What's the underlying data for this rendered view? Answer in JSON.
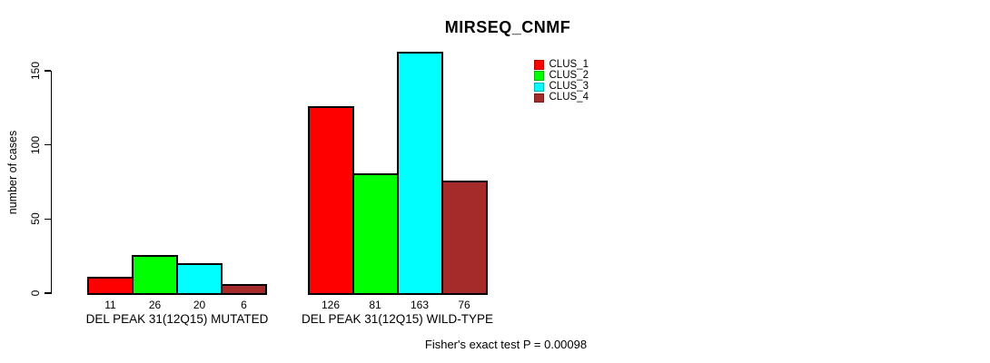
{
  "chart_data": {
    "type": "bar",
    "title": "MIRSEQ_CNMF",
    "ylabel": "number of cases",
    "xlabel": "",
    "ylim": [
      0,
      163
    ],
    "yticks": [
      0,
      50,
      100,
      150
    ],
    "grid": false,
    "legend_position": "top-right",
    "categories": [
      "DEL PEAK 31(12Q15) MUTATED",
      "DEL PEAK 31(12Q15) WILD-TYPE"
    ],
    "series": [
      {
        "name": "CLUS_1",
        "color": "#FF0000",
        "values": [
          11,
          126
        ]
      },
      {
        "name": "CLUS_2",
        "color": "#00FF00",
        "values": [
          26,
          81
        ]
      },
      {
        "name": "CLUS_3",
        "color": "#00FFFF",
        "values": [
          20,
          163
        ]
      },
      {
        "name": "CLUS_4",
        "color": "#A52A2A",
        "values": [
          6,
          76
        ]
      }
    ],
    "bar_value_labels": [
      [
        "11",
        "26",
        "20",
        "6"
      ],
      [
        "126",
        "81",
        "163",
        "76"
      ]
    ],
    "footer": "Fisher's exact test P = 0.00098"
  }
}
